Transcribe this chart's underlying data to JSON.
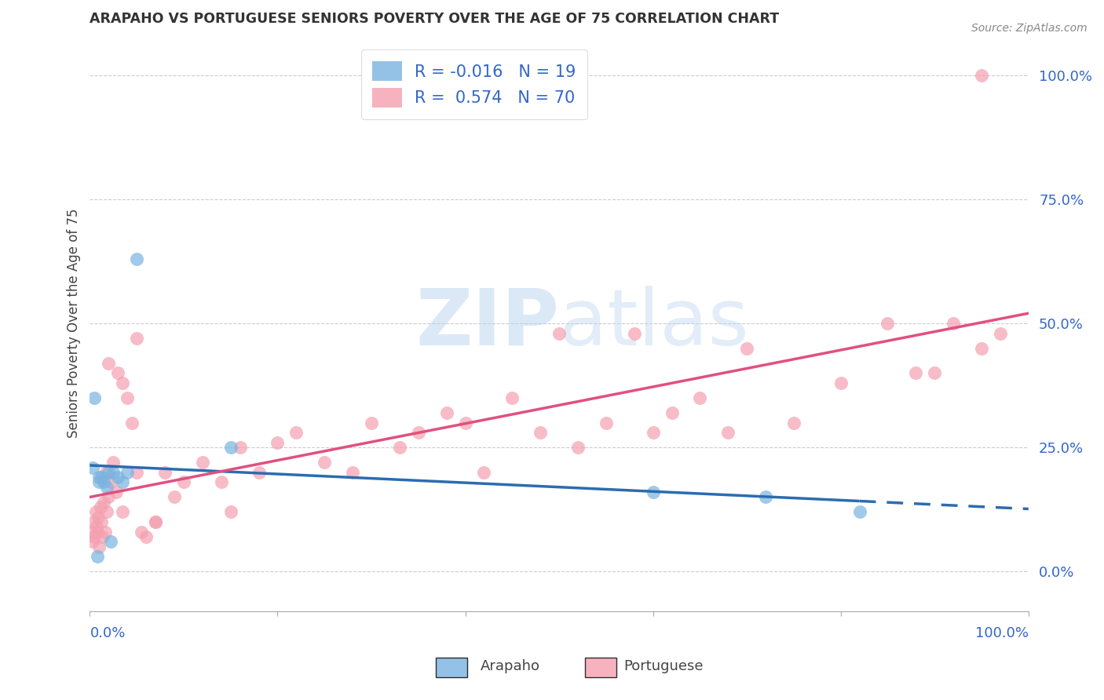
{
  "title": "ARAPAHO VS PORTUGUESE SENIORS POVERTY OVER THE AGE OF 75 CORRELATION CHART",
  "source": "Source: ZipAtlas.com",
  "ylabel": "Seniors Poverty Over the Age of 75",
  "ytick_labels": [
    "0.0%",
    "25.0%",
    "50.0%",
    "75.0%",
    "100.0%"
  ],
  "ytick_values": [
    0,
    25,
    50,
    75,
    100
  ],
  "xlim": [
    0,
    100
  ],
  "ylim": [
    -8,
    108
  ],
  "arapaho_color": "#7ab3e0",
  "portuguese_color": "#f4a0b0",
  "arapaho_line_color": "#2b6cb0",
  "portuguese_line_color": "#e05080",
  "arapaho_R": -0.016,
  "arapaho_N": 19,
  "portuguese_R": 0.574,
  "portuguese_N": 70,
  "watermark_zip": "ZIP",
  "watermark_atlas": "atlas",
  "arapaho_x": [
    0.3,
    0.8,
    1.0,
    1.2,
    1.5,
    2.0,
    2.5,
    3.0,
    3.5,
    4.0,
    5.0,
    0.5,
    1.8,
    2.2,
    1.0,
    60,
    72,
    82,
    15
  ],
  "arapaho_y": [
    21,
    3,
    19,
    19,
    18,
    20,
    20,
    19,
    18,
    20,
    63,
    35,
    17,
    6,
    18,
    16,
    15,
    12,
    25
  ],
  "portuguese_x": [
    0.2,
    0.3,
    0.4,
    0.5,
    0.6,
    0.7,
    0.8,
    0.9,
    1.0,
    1.1,
    1.2,
    1.3,
    1.5,
    1.6,
    1.7,
    1.8,
    2.0,
    2.2,
    2.5,
    2.8,
    3.0,
    3.5,
    4.0,
    4.5,
    5.0,
    5.5,
    6.0,
    7.0,
    8.0,
    9.0,
    10.0,
    12.0,
    14.0,
    16.0,
    18.0,
    20.0,
    22.0,
    25.0,
    28.0,
    30.0,
    33.0,
    35.0,
    38.0,
    40.0,
    42.0,
    45.0,
    48.0,
    50.0,
    52.0,
    55.0,
    58.0,
    60.0,
    62.0,
    65.0,
    68.0,
    70.0,
    75.0,
    80.0,
    85.0,
    88.0,
    90.0,
    92.0,
    95.0,
    97.0,
    2.0,
    3.5,
    5.0,
    7.0,
    15.0,
    95.0
  ],
  "portuguese_y": [
    8,
    6,
    10,
    7,
    12,
    9,
    8,
    11,
    5,
    13,
    10,
    7,
    14,
    8,
    20,
    12,
    15,
    18,
    22,
    16,
    40,
    12,
    35,
    30,
    47,
    8,
    7,
    10,
    20,
    15,
    18,
    22,
    18,
    25,
    20,
    26,
    28,
    22,
    20,
    30,
    25,
    28,
    32,
    30,
    20,
    35,
    28,
    48,
    25,
    30,
    48,
    28,
    32,
    35,
    28,
    45,
    30,
    38,
    50,
    40,
    40,
    50,
    45,
    48,
    42,
    38,
    20,
    10,
    12,
    100
  ],
  "background_color": "#ffffff",
  "grid_color": "#cccccc",
  "dashed_line_y": 19.5
}
